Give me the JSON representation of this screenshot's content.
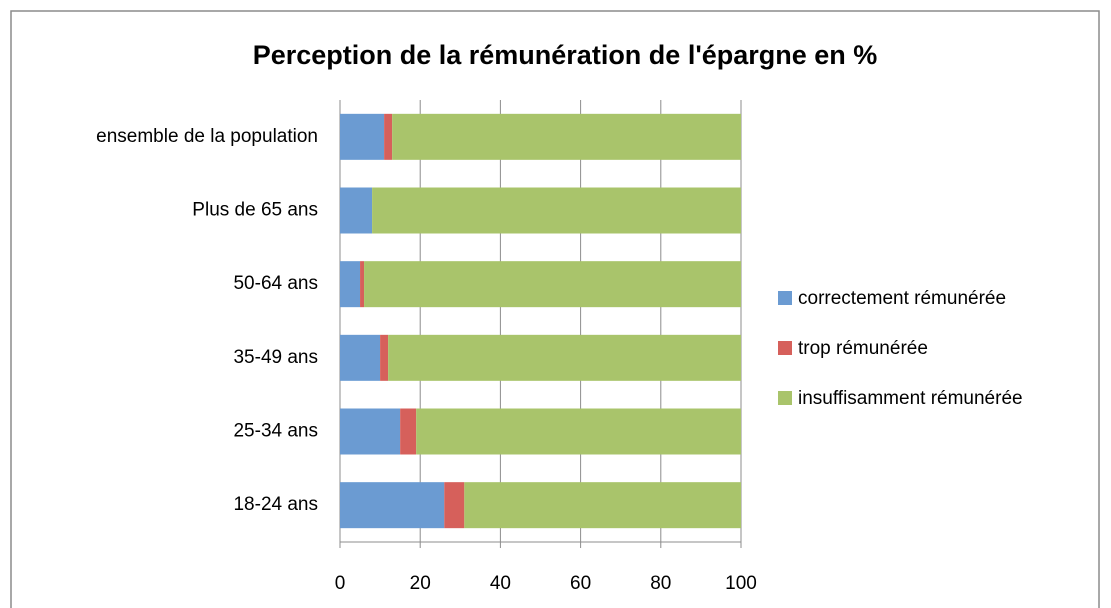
{
  "chart_data": {
    "type": "stacked_barh",
    "title": "Perception de la rémunération de l'épargne en %",
    "categories": [
      "ensemble de la population",
      "Plus de 65 ans",
      "50-64 ans",
      "35-49 ans",
      "25-34 ans",
      "18-24 ans"
    ],
    "series": [
      {
        "name": "correctement rémunérée",
        "color": "#6b9bd2",
        "values": [
          11,
          8,
          5,
          10,
          15,
          26
        ]
      },
      {
        "name": "trop rémunérée",
        "color": "#d6605b",
        "values": [
          2,
          0,
          1,
          2,
          4,
          5
        ]
      },
      {
        "name": "insuffisamment rémunérée",
        "color": "#a9c46b",
        "values": [
          87,
          92,
          94,
          88,
          81,
          69
        ]
      }
    ],
    "xlim": [
      0,
      100
    ],
    "xticks": [
      0,
      20,
      40,
      60,
      80,
      100
    ],
    "grid": true,
    "legend": "right"
  }
}
